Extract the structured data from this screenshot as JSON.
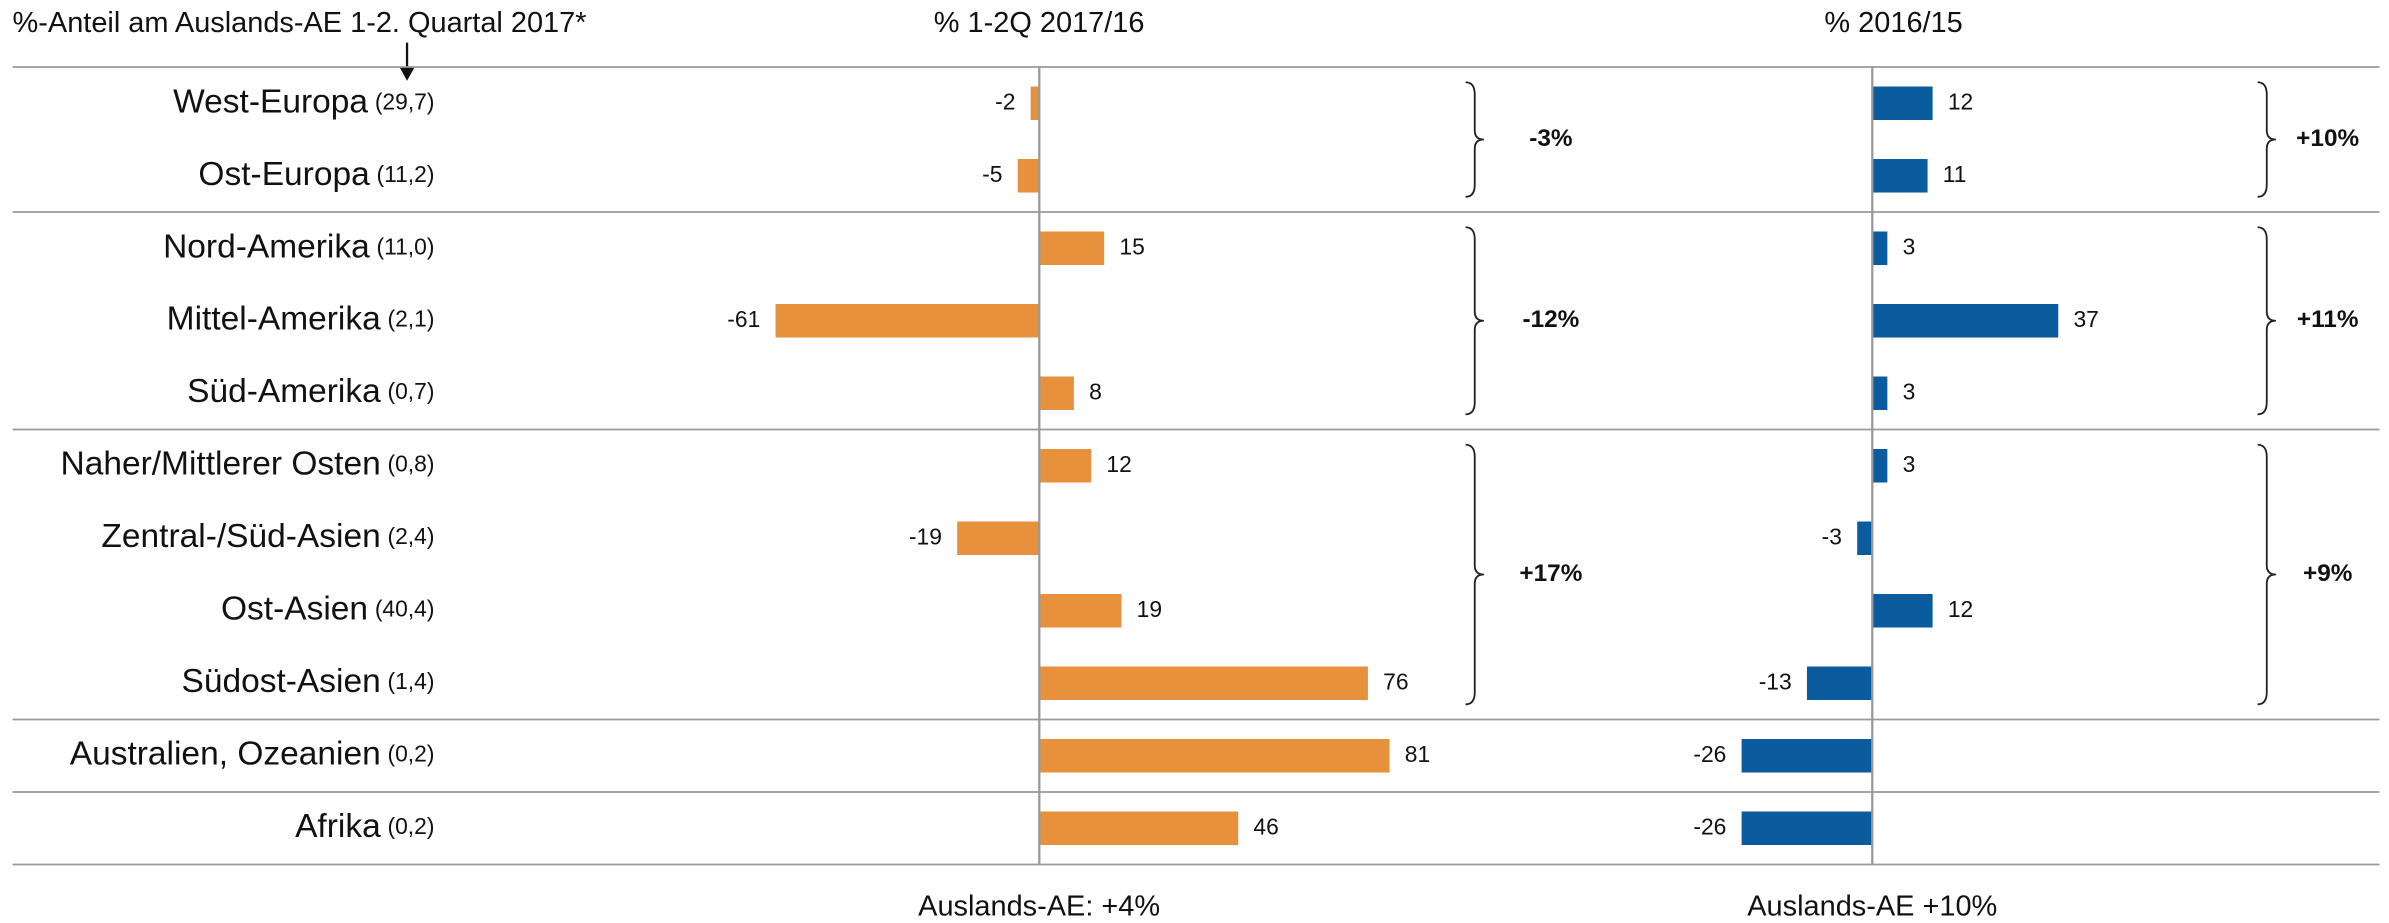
{
  "chart_data": {
    "type": "bar",
    "orientation": "horizontal",
    "title": "%-Anteil am Auslands-AE 1-2. Quartal 2017*",
    "categories": [
      "West-Europa",
      "Ost-Europa",
      "Nord-Amerika",
      "Mittel-Amerika",
      "Süd-Amerika",
      "Naher/Mittlerer Osten",
      "Zentral-/Süd-Asien",
      "Ost-Asien",
      "Südost-Asien",
      "Australien, Ozeanien",
      "Afrika"
    ],
    "category_shares": [
      "(29,7)",
      "(11,2)",
      "(11,0)",
      "(2,1)",
      "(0,7)",
      "(0,8)",
      "(2,4)",
      "(40,4)",
      "(1,4)",
      "(0,2)",
      "(0,2)"
    ],
    "group_sizes": [
      2,
      3,
      4,
      1,
      1
    ],
    "series": [
      {
        "name": "% 1-2Q 2017/16",
        "color": "#e8913d",
        "values": [
          -2,
          -5,
          15,
          -61,
          8,
          12,
          -19,
          19,
          76,
          81,
          46
        ],
        "xlim": [
          -80,
          100
        ],
        "group_labels": [
          "-3%",
          "-12%",
          "+17%"
        ],
        "total": "Auslands-AE: +4%"
      },
      {
        "name": "% 2016/15",
        "color": "#0b5c9e",
        "values": [
          12,
          11,
          3,
          37,
          3,
          3,
          -3,
          12,
          -13,
          -26,
          -26
        ],
        "xlim": [
          -40,
          60
        ],
        "group_labels": [
          "+10%",
          "+11%",
          "+9%"
        ],
        "total": "Auslands-AE +10%"
      }
    ]
  }
}
